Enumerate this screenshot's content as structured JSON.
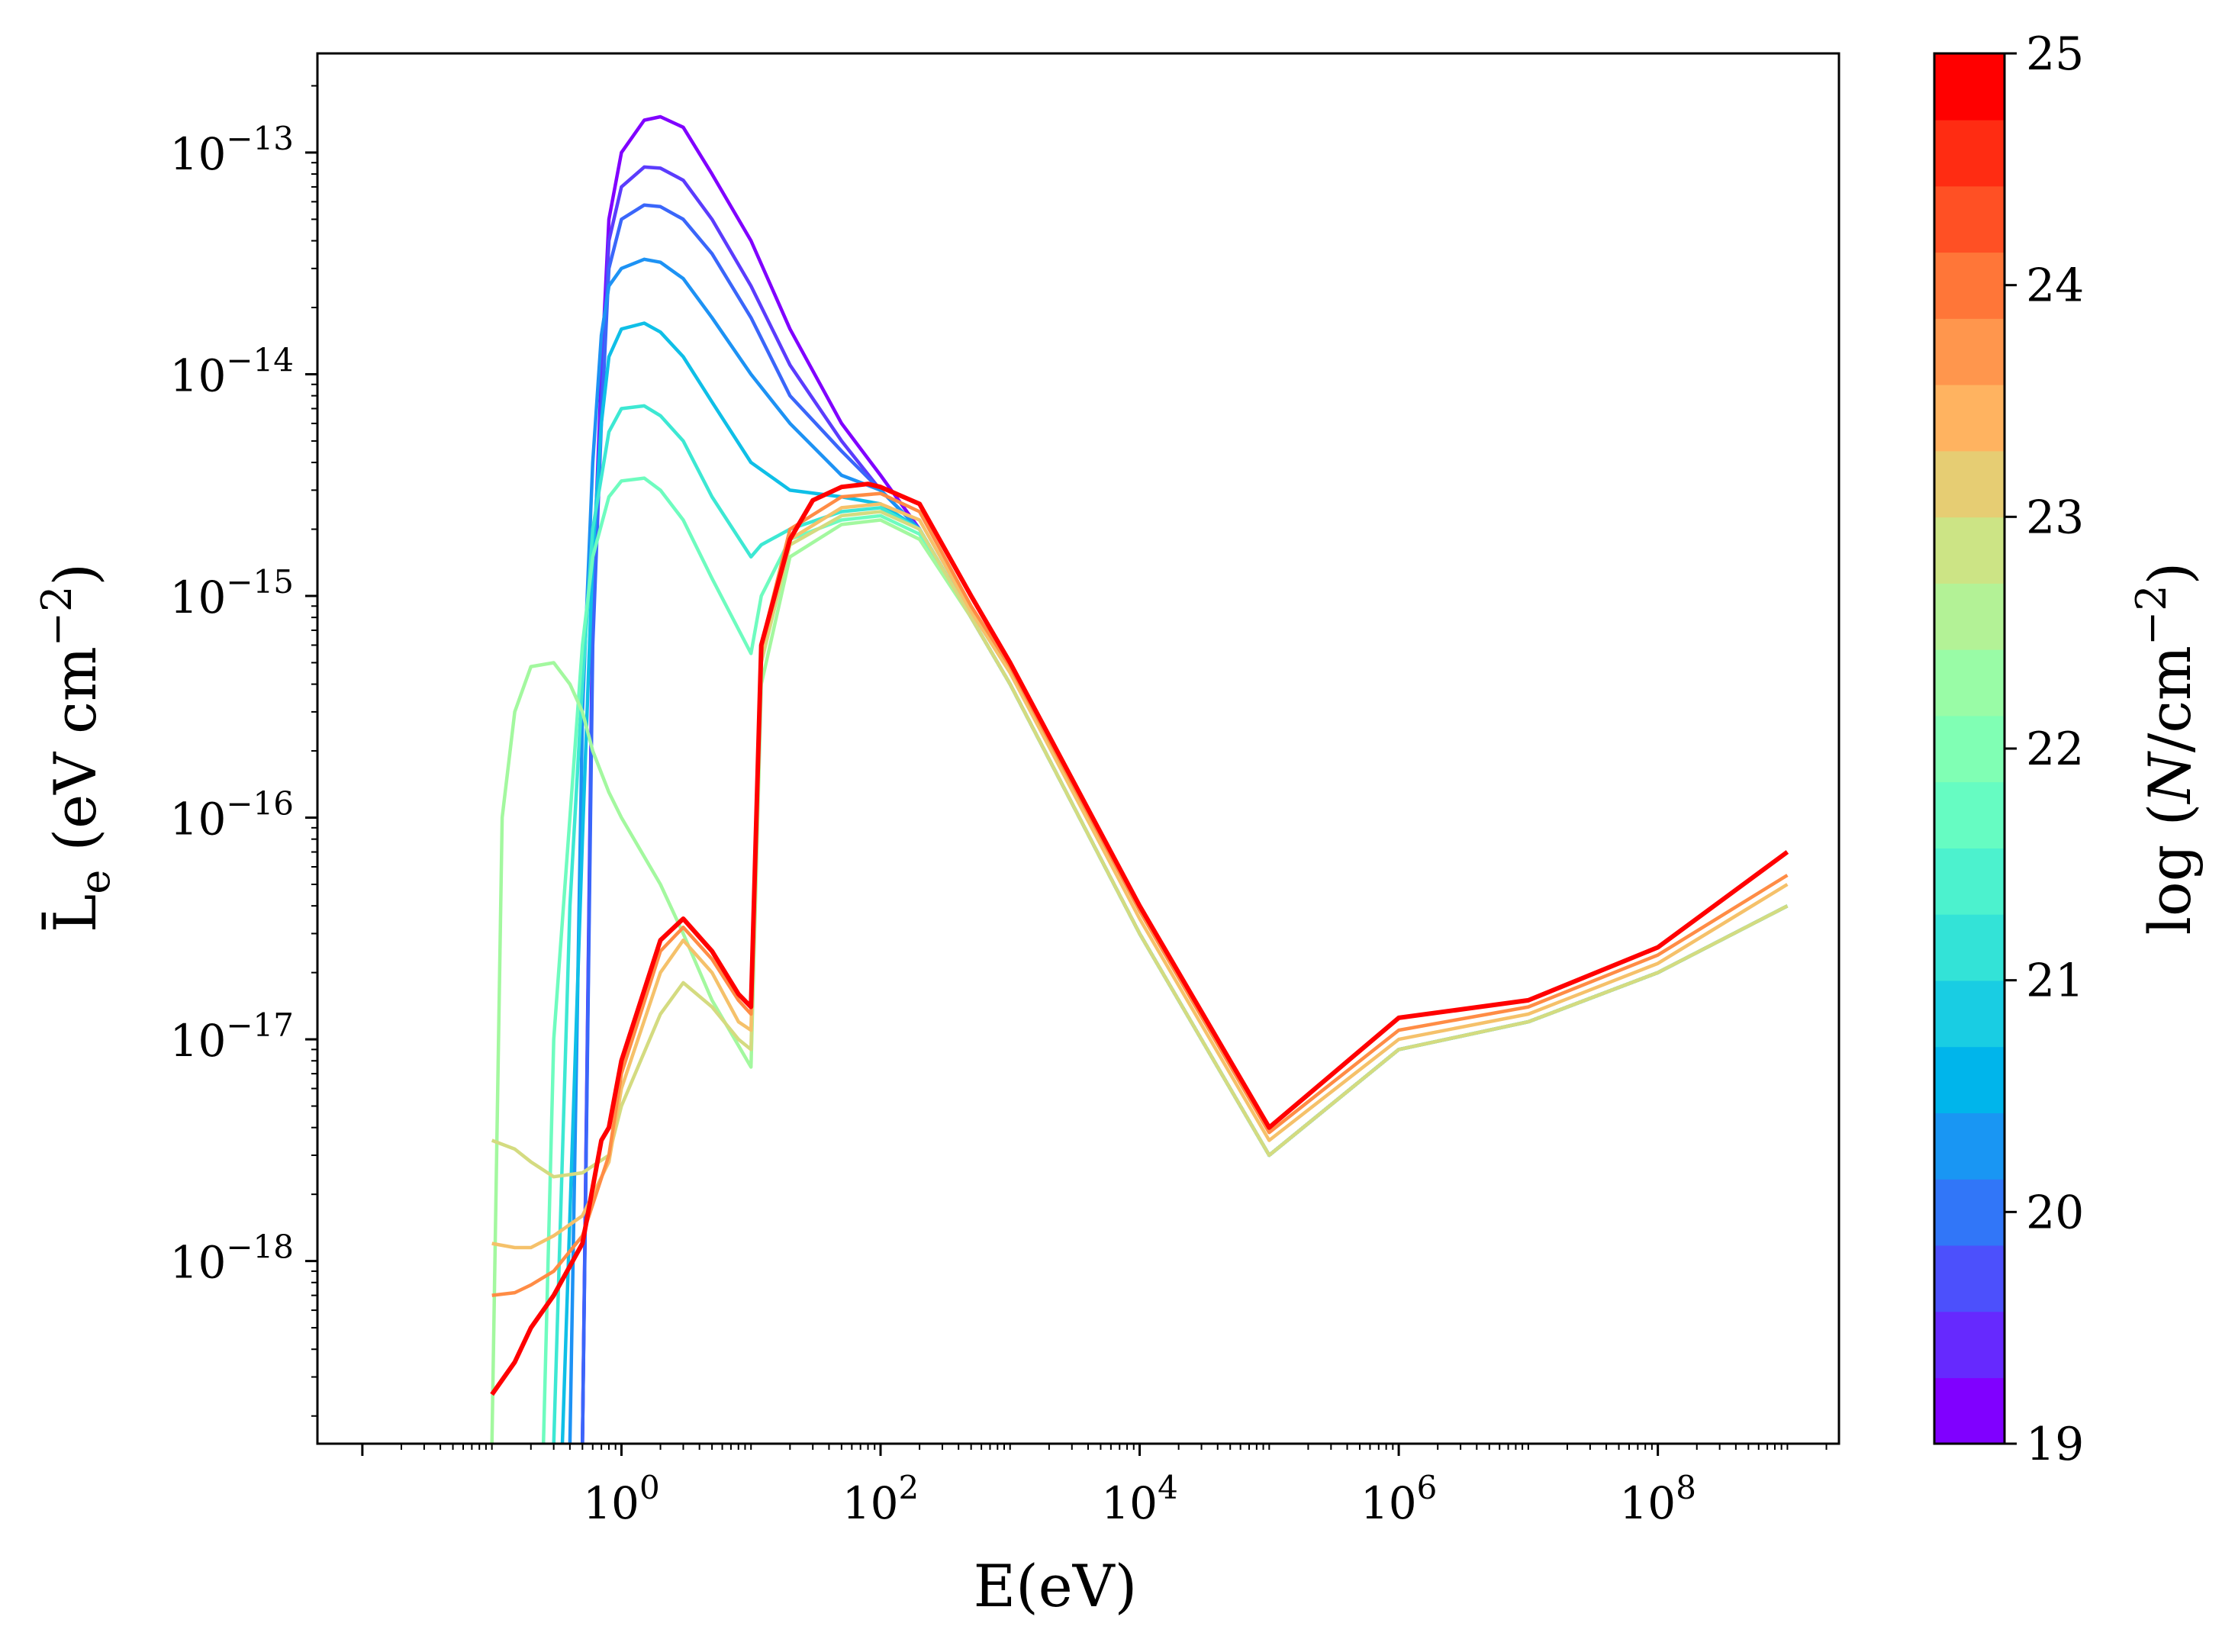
{
  "chart_data": {
    "type": "line",
    "xlabel": "E(eV)",
    "ylabel": {
      "main": "L̄",
      "sub": "e",
      "rest": " (eV cm",
      "sup": "−2",
      "close": ")"
    },
    "xscale": "log",
    "yscale": "log",
    "xlim": [
      0.0045,
      2500000000.0
    ],
    "ylim": [
      1.5e-19,
      2.8e-13
    ],
    "xticks": [
      {
        "value": 1,
        "base": "10",
        "exp": "0"
      },
      {
        "value": 100,
        "base": "10",
        "exp": "2"
      },
      {
        "value": 10000,
        "base": "10",
        "exp": "4"
      },
      {
        "value": 1000000,
        "base": "10",
        "exp": "6"
      },
      {
        "value": 100000000,
        "base": "10",
        "exp": "8"
      }
    ],
    "yticks": [
      {
        "value": 1e-18,
        "base": "10",
        "exp": "−18"
      },
      {
        "value": 1e-17,
        "base": "10",
        "exp": "−17"
      },
      {
        "value": 1e-16,
        "base": "10",
        "exp": "−16"
      },
      {
        "value": 1e-15,
        "base": "10",
        "exp": "−15"
      },
      {
        "value": 1e-14,
        "base": "10",
        "exp": "−14"
      },
      {
        "value": 1e-13,
        "base": "10",
        "exp": "−13"
      }
    ],
    "colorbar": {
      "label": {
        "pre": "log (",
        "var": "N",
        "mid": "/cm",
        "sup": "−2",
        "close": ")"
      },
      "range": [
        19,
        25
      ],
      "ticks": [
        "19",
        "20",
        "21",
        "22",
        "23",
        "24",
        "25"
      ],
      "colors": [
        "#8000ff",
        "#6629fe",
        "#4c50fc",
        "#3176f8",
        "#1996f3",
        "#00b5eb",
        "#19cde3",
        "#33e3d7",
        "#4cf2ce",
        "#66fcc2",
        "#80ffb4",
        "#99fca6",
        "#b3f296",
        "#cce485",
        "#e6cd73",
        "#ffb360",
        "#ff964d",
        "#ff7638",
        "#ff5024",
        "#ff2c12",
        "#ff0000"
      ]
    },
    "series": [
      {
        "logN": 19,
        "color": "#8000ff",
        "x": [
          0.5,
          0.6,
          0.7,
          0.8,
          1,
          1.5,
          2,
          3,
          5,
          10,
          20,
          50,
          100,
          200,
          500,
          1000,
          10000.0,
          100000.0,
          1000000.0,
          10000000.0,
          100000000.0,
          1000000000.0
        ],
        "y": [
          1.5e-19,
          1e-15,
          1e-14,
          5e-14,
          1e-13,
          1.4e-13,
          1.45e-13,
          1.3e-13,
          8e-14,
          4e-14,
          1.6e-14,
          6e-15,
          3.5e-15,
          2e-15,
          8e-16,
          4e-16,
          3e-17,
          3e-18,
          9e-18,
          1.2e-17,
          2e-17,
          4e-17
        ]
      },
      {
        "logN": 19.5,
        "color": "#5b3cfd",
        "x": [
          0.5,
          0.6,
          0.7,
          0.8,
          1,
          1.5,
          2,
          3,
          5,
          10,
          20,
          50,
          100,
          200,
          500,
          1000,
          10000.0,
          100000.0,
          1000000.0,
          10000000.0,
          100000000.0,
          1000000000.0
        ],
        "y": [
          1.5e-19,
          8e-16,
          8e-15,
          4e-14,
          7e-14,
          8.6e-14,
          8.5e-14,
          7.5e-14,
          5e-14,
          2.5e-14,
          1.1e-14,
          5e-15,
          3e-15,
          2e-15,
          8e-16,
          4e-16,
          3e-17,
          3e-18,
          9e-18,
          1.2e-17,
          2e-17,
          4e-17
        ]
      },
      {
        "logN": 20,
        "color": "#3a66fa",
        "x": [
          0.5,
          0.6,
          0.7,
          0.8,
          1,
          1.5,
          2,
          3,
          5,
          10,
          20,
          50,
          100,
          200,
          500,
          1000,
          10000.0,
          100000.0,
          1000000.0,
          10000000.0,
          100000000.0,
          1000000000.0
        ],
        "y": [
          1.5e-19,
          6e-16,
          6e-15,
          3e-14,
          5e-14,
          5.8e-14,
          5.7e-14,
          5e-14,
          3.5e-14,
          1.8e-14,
          8e-15,
          4.5e-15,
          3e-15,
          2e-15,
          8e-16,
          4e-16,
          3e-17,
          3e-18,
          9e-18,
          1.2e-17,
          2e-17,
          4e-17
        ]
      },
      {
        "logN": 20.5,
        "color": "#1d92f4",
        "x": [
          0.4,
          0.5,
          0.6,
          0.7,
          0.8,
          1,
          1.5,
          2,
          3,
          5,
          10,
          20,
          50,
          100,
          200,
          500,
          1000,
          10000.0,
          100000.0,
          1000000.0,
          10000000.0,
          100000000.0,
          1000000000.0
        ],
        "y": [
          1.5e-19,
          3e-16,
          4e-15,
          1.5e-14,
          2.5e-14,
          3e-14,
          3.3e-14,
          3.2e-14,
          2.7e-14,
          1.8e-14,
          1e-14,
          6e-15,
          3.5e-15,
          3e-15,
          2e-15,
          8e-16,
          4e-16,
          3e-17,
          3e-18,
          9e-18,
          1.2e-17,
          2e-17,
          4e-17
        ]
      },
      {
        "logN": 21,
        "color": "#0fbfe7",
        "x": [
          0.35,
          0.5,
          0.6,
          0.7,
          0.8,
          1,
          1.5,
          2,
          3,
          5,
          10,
          20,
          50,
          100,
          200,
          500,
          1000,
          10000.0,
          100000.0,
          1000000.0,
          10000000.0,
          100000000.0,
          1000000000.0
        ],
        "y": [
          1.5e-19,
          8e-17,
          1.5e-15,
          6e-15,
          1.2e-14,
          1.6e-14,
          1.7e-14,
          1.55e-14,
          1.2e-14,
          7.5e-15,
          4e-15,
          3e-15,
          2.8e-15,
          2.6e-15,
          2e-15,
          8e-16,
          4e-16,
          3e-17,
          3e-18,
          9e-18,
          1.2e-17,
          2e-17,
          4e-17
        ]
      },
      {
        "logN": 21.5,
        "color": "#3de8d3",
        "x": [
          0.3,
          0.4,
          0.5,
          0.6,
          0.8,
          1,
          1.5,
          2,
          3,
          5,
          10,
          12,
          20,
          50,
          100,
          200,
          500,
          1000,
          10000.0,
          100000.0,
          1000000.0,
          10000000.0,
          100000000.0,
          1000000000.0
        ],
        "y": [
          1.5e-19,
          4e-17,
          4e-16,
          2e-15,
          5.5e-15,
          7e-15,
          7.2e-15,
          6.5e-15,
          5e-15,
          2.8e-15,
          1.5e-15,
          1.7e-15,
          2e-15,
          2.4e-15,
          2.5e-15,
          2e-15,
          8e-16,
          4e-16,
          3e-17,
          3e-18,
          9e-18,
          1.2e-17,
          2e-17,
          4e-17
        ]
      },
      {
        "logN": 22,
        "color": "#6efcbf",
        "x": [
          0.25,
          0.3,
          0.4,
          0.5,
          0.6,
          0.8,
          1,
          1.5,
          2,
          3,
          5,
          10,
          12,
          20,
          50,
          100,
          200,
          500,
          1000,
          10000.0,
          100000.0,
          1000000.0,
          10000000.0,
          100000000.0,
          1000000000.0
        ],
        "y": [
          1.5e-19,
          1e-17,
          1e-16,
          6e-16,
          1.5e-15,
          2.8e-15,
          3.3e-15,
          3.4e-15,
          3e-15,
          2.2e-15,
          1.2e-15,
          5.5e-16,
          1e-15,
          1.8e-15,
          2.2e-15,
          2.3e-15,
          1.9e-15,
          8e-16,
          4e-16,
          3e-17,
          3e-18,
          9e-18,
          1.2e-17,
          2e-17,
          4e-17
        ]
      },
      {
        "logN": 22.5,
        "color": "#a3f89f",
        "x": [
          0.1,
          0.12,
          0.15,
          0.2,
          0.3,
          0.4,
          0.5,
          0.6,
          0.8,
          1,
          2,
          3,
          5,
          10,
          12,
          20,
          50,
          100,
          200,
          500,
          1000,
          10000.0,
          100000.0,
          1000000.0,
          10000000.0,
          100000000.0,
          1000000000.0
        ],
        "y": [
          1.5e-19,
          1e-16,
          3e-16,
          4.8e-16,
          5e-16,
          4e-16,
          3e-16,
          2e-16,
          1.3e-16,
          1e-16,
          5e-17,
          3e-17,
          1.5e-17,
          7.5e-18,
          4e-16,
          1.5e-15,
          2.1e-15,
          2.2e-15,
          1.8e-15,
          8e-16,
          4e-16,
          3e-17,
          3e-18,
          9e-18,
          1.2e-17,
          2e-17,
          4e-17
        ]
      },
      {
        "logN": 23,
        "color": "#d4db80",
        "x": [
          0.1,
          0.15,
          0.2,
          0.3,
          0.5,
          0.8,
          1,
          2,
          3,
          5,
          8,
          10,
          12,
          20,
          50,
          100,
          200,
          500,
          1000,
          10000.0,
          100000.0,
          1000000.0,
          10000000.0,
          100000000.0,
          1000000000.0
        ],
        "y": [
          3.5e-18,
          3.2e-18,
          2.8e-18,
          2.4e-18,
          2.5e-18,
          3e-18,
          5e-18,
          1.3e-17,
          1.8e-17,
          1.4e-17,
          1e-17,
          9e-18,
          5e-16,
          1.7e-15,
          2.3e-15,
          2.4e-15,
          2e-15,
          8e-16,
          4e-16,
          3e-17,
          3e-18,
          9e-18,
          1.2e-17,
          2e-17,
          4e-17
        ]
      },
      {
        "logN": 23.5,
        "color": "#f5c16a",
        "x": [
          0.1,
          0.15,
          0.2,
          0.3,
          0.5,
          0.8,
          1,
          2,
          3,
          5,
          8,
          10,
          12,
          20,
          50,
          100,
          200,
          500,
          1000,
          10000.0,
          100000.0,
          1000000.0,
          10000000.0,
          100000000.0,
          1000000000.0
        ],
        "y": [
          1.2e-18,
          1.15e-18,
          1.15e-18,
          1.3e-18,
          1.6e-18,
          2.8e-18,
          6e-18,
          2e-17,
          2.8e-17,
          2e-17,
          1.2e-17,
          1.1e-17,
          5.5e-16,
          1.8e-15,
          2.5e-15,
          2.6e-15,
          2.2e-15,
          8.5e-16,
          4.5e-16,
          3.5e-17,
          3.5e-18,
          1e-17,
          1.3e-17,
          2.2e-17,
          5e-17
        ]
      },
      {
        "logN": 24,
        "color": "#ff8c45",
        "x": [
          0.1,
          0.15,
          0.2,
          0.3,
          0.5,
          0.8,
          1,
          2,
          3,
          5,
          8,
          10,
          12,
          20,
          50,
          100,
          200,
          500,
          1000,
          10000.0,
          100000.0,
          1000000.0,
          10000000.0,
          100000000.0,
          1000000000.0
        ],
        "y": [
          7e-19,
          7.2e-19,
          7.8e-19,
          9e-19,
          1.3e-18,
          3e-18,
          7e-18,
          2.5e-17,
          3.2e-17,
          2.3e-17,
          1.5e-17,
          1.3e-17,
          6e-16,
          2e-15,
          2.8e-15,
          2.9e-15,
          2.4e-15,
          9e-16,
          4.8e-16,
          3.8e-17,
          3.8e-18,
          1.1e-17,
          1.4e-17,
          2.4e-17,
          5.5e-17
        ]
      },
      {
        "logN": 25,
        "color": "#ff0000",
        "x": [
          0.1,
          0.15,
          0.2,
          0.3,
          0.5,
          0.7,
          0.8,
          1,
          2,
          3,
          5,
          8,
          10,
          12,
          20,
          30,
          50,
          80,
          100,
          200,
          500,
          1000,
          10000.0,
          100000.0,
          1000000.0,
          10000000.0,
          100000000.0,
          1000000000.0
        ],
        "y": [
          2.5e-19,
          3.5e-19,
          5e-19,
          7e-19,
          1.2e-18,
          3.5e-18,
          4e-18,
          8e-18,
          2.8e-17,
          3.5e-17,
          2.5e-17,
          1.6e-17,
          1.4e-17,
          6e-16,
          1.8e-15,
          2.7e-15,
          3.1e-15,
          3.2e-15,
          3.1e-15,
          2.6e-15,
          1e-15,
          5e-16,
          4e-17,
          4e-18,
          1.25e-17,
          1.5e-17,
          2.6e-17,
          7e-17
        ]
      }
    ]
  }
}
